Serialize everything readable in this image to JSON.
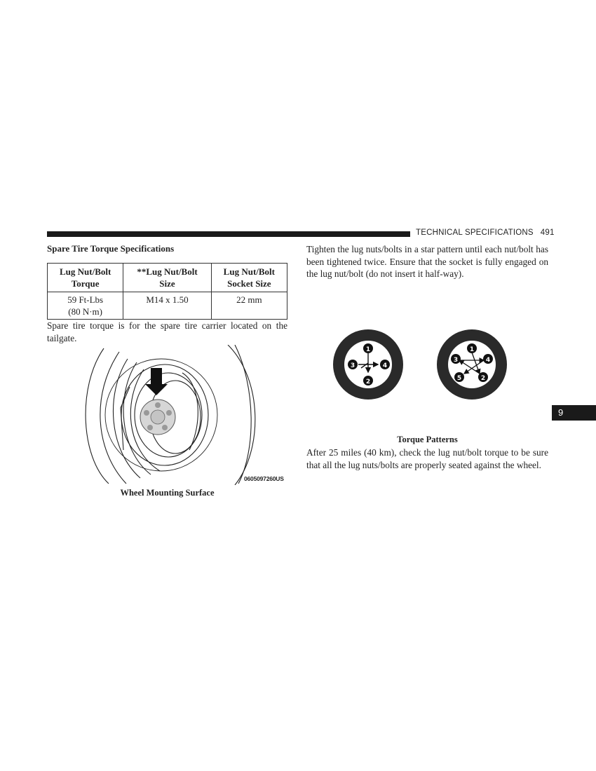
{
  "header": {
    "section": "TECHNICAL SPECIFICATIONS",
    "page_number": "491"
  },
  "section_title": "Spare Tire Torque Specifications",
  "table": {
    "headers": [
      [
        "Lug Nut/Bolt",
        "Torque"
      ],
      [
        "**Lug Nut/Bolt",
        "Size"
      ],
      [
        "Lug Nut/Bolt",
        "Socket Size"
      ]
    ],
    "row": [
      [
        "59 Ft-Lbs",
        "(80 N·m)"
      ],
      [
        "M14 x 1.50"
      ],
      [
        "22 mm"
      ]
    ]
  },
  "paragraphs": {
    "spare_torque_note": "Spare tire torque is for the spare tire carrier located on the tailgate.",
    "tighten_instructions": "Tighten the lug nuts/bolts in a star pattern until each nut/bolt has been tightened twice. Ensure that the socket is fully engaged on the lug nut/bolt (do not insert it half-way).",
    "after_miles": "After 25 miles (40 km), check the lug nut/bolt torque to be sure that all the lug nuts/bolts are properly seated against the wheel."
  },
  "figures": {
    "wheel_mounting": {
      "caption": "Wheel Mounting Surface",
      "code": "0605097260US"
    },
    "torque_patterns": {
      "caption": "Torque Patterns",
      "four_lug_numbers": [
        "1",
        "2",
        "3",
        "4"
      ],
      "five_lug_numbers": [
        "1",
        "2",
        "3",
        "4",
        "5"
      ]
    }
  },
  "chapter_tab": "9"
}
